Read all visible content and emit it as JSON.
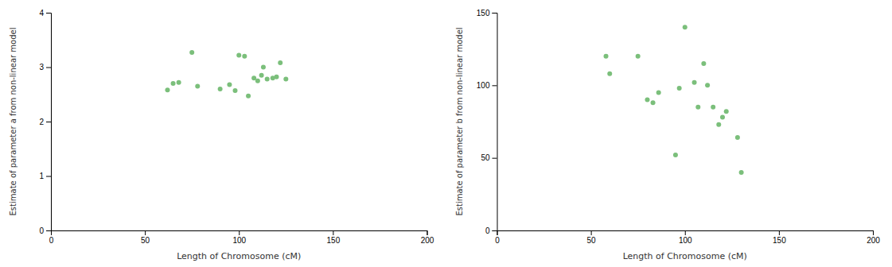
{
  "chart_data": [
    {
      "type": "scatter",
      "x": [
        62,
        65,
        68,
        75,
        78,
        90,
        95,
        98,
        100,
        103,
        105,
        108,
        110,
        112,
        113,
        115,
        118,
        120,
        122,
        125
      ],
      "values": [
        2.58,
        2.7,
        2.72,
        3.27,
        2.65,
        2.6,
        2.68,
        2.57,
        3.22,
        3.2,
        2.47,
        2.8,
        2.75,
        2.85,
        3.0,
        2.78,
        2.8,
        2.82,
        3.08,
        2.78
      ],
      "xlabel": "Length of Chromosome (cM)",
      "ylabel": "Estimate of parameter a from non-linear model",
      "xlim": [
        0,
        200
      ],
      "ylim": [
        0,
        4
      ],
      "xticks": [
        0,
        50,
        100,
        150,
        200
      ],
      "yticks": [
        0,
        1,
        2,
        3,
        4
      ],
      "color": "#7bbf7b"
    },
    {
      "type": "scatter",
      "x": [
        58,
        60,
        75,
        80,
        83,
        86,
        95,
        97,
        100,
        105,
        107,
        110,
        112,
        115,
        118,
        120,
        122,
        128,
        130
      ],
      "values": [
        120,
        108,
        120,
        90,
        88,
        95,
        52,
        98,
        140,
        102,
        85,
        115,
        100,
        85,
        73,
        78,
        82,
        64,
        40
      ],
      "xlabel": "Length of Chromosome (cM)",
      "ylabel": "Estimate of parameter b from non-linear model",
      "xlim": [
        0,
        200
      ],
      "ylim": [
        0,
        150
      ],
      "xticks": [
        0,
        50,
        100,
        150,
        200
      ],
      "yticks": [
        0,
        50,
        100,
        150
      ],
      "color": "#7bbf7b"
    }
  ]
}
